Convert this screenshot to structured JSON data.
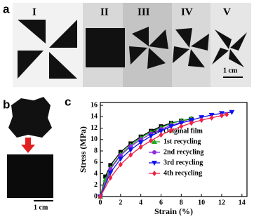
{
  "panels": {
    "a": {
      "label": "a",
      "items": [
        "I",
        "II",
        "III",
        "IV",
        "V"
      ],
      "scale_bar": "1 cm"
    },
    "b": {
      "label": "b",
      "scale_bar": "1 cm"
    },
    "c": {
      "label": "c"
    }
  },
  "chart_data": {
    "type": "line",
    "xlabel": "Strain (%)",
    "ylabel": "Stress (MPa)",
    "xlim": [
      0,
      14.5
    ],
    "ylim": [
      0,
      16.5
    ],
    "xticks": [
      0,
      2,
      4,
      6,
      8,
      10,
      12,
      14
    ],
    "yticks": [
      0,
      2,
      4,
      6,
      8,
      10,
      12,
      14,
      16
    ],
    "legend": "lower right",
    "series": [
      {
        "name": "Original film",
        "color": "#000000",
        "marker": "square",
        "x": [
          0,
          0.5,
          1,
          2,
          3,
          4,
          5,
          6,
          7,
          8,
          9
        ],
        "values": [
          0,
          3.5,
          5.5,
          7.8,
          9.3,
          10.5,
          11.5,
          12.3,
          12.9,
          13.3,
          13.6
        ]
      },
      {
        "name": "1st  recycling",
        "color": "#22aa22",
        "marker": "triangle-up",
        "x": [
          0,
          0.5,
          1,
          2,
          3,
          4,
          5,
          6,
          7,
          8,
          9
        ],
        "values": [
          0,
          3,
          5,
          7.4,
          9,
          10.3,
          11.3,
          12.1,
          12.8,
          13.3,
          13.7
        ]
      },
      {
        "name": "2nd recycling",
        "color": "#8a2be2",
        "marker": "circle",
        "x": [
          0,
          1,
          2,
          3,
          4,
          5,
          6,
          7,
          8,
          9
        ],
        "values": [
          0,
          4.8,
          7.2,
          8.8,
          10,
          11,
          11.8,
          12.5,
          13,
          13.3
        ]
      },
      {
        "name": "3rd recycling",
        "color": "#1010ee",
        "marker": "triangle-down",
        "x": [
          0,
          1,
          2,
          3,
          4,
          5,
          6,
          7,
          8,
          9,
          10,
          11,
          12,
          13
        ],
        "values": [
          0,
          4.2,
          6.6,
          8.2,
          9.5,
          10.6,
          11.5,
          12.3,
          12.9,
          13.4,
          13.9,
          14.3,
          14.6,
          14.8
        ]
      },
      {
        "name": "4th recycling",
        "color": "#ee2244",
        "marker": "diamond",
        "x": [
          0,
          1,
          2,
          3,
          4,
          5,
          6,
          7,
          8,
          9,
          10,
          11,
          12,
          12.5
        ],
        "values": [
          0,
          3.3,
          5.6,
          7.3,
          8.7,
          9.8,
          10.8,
          11.6,
          12.3,
          12.9,
          13.4,
          13.8,
          14.2,
          14.4
        ]
      }
    ]
  }
}
